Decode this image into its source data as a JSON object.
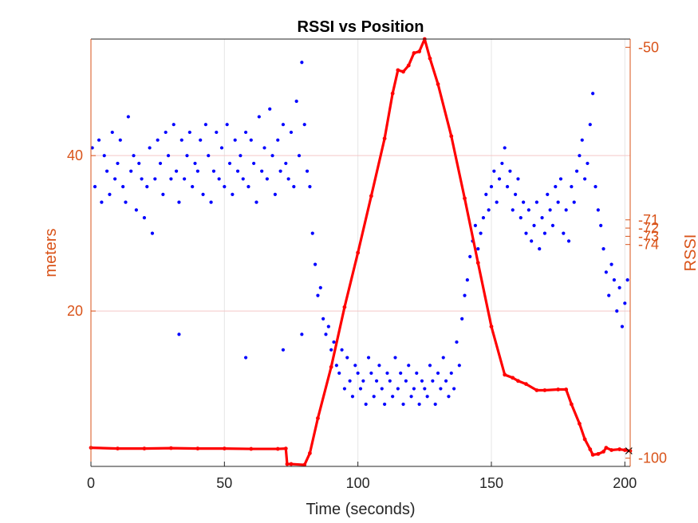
{
  "chart_data": {
    "type": "scatter",
    "title": "RSSI vs Position",
    "xlabel": "Time (seconds)",
    "ylabel_left": "meters",
    "ylabel_right": "RSSI",
    "xlim": [
      0,
      202
    ],
    "ylim_left": [
      0,
      55
    ],
    "ylim_right": [
      -101,
      -49
    ],
    "x_ticks": [
      "0",
      "50",
      "100",
      "150",
      "200"
    ],
    "y_ticks_left": [
      "20",
      "40"
    ],
    "y_ticks_right": [
      "-50",
      "-71",
      "-72",
      "-73",
      "-74",
      "-100"
    ],
    "grid": true,
    "colors": {
      "axis_left": "#D95319",
      "axis_right": "#D95319",
      "position": "#ff0000",
      "rssi": "#0000ff",
      "axes_box": "#262626",
      "grid": "#e6e6e6",
      "grid_pink": "#f4c7c7"
    },
    "series": [
      {
        "label": "position",
        "axis": "left",
        "style": "line",
        "x": [
          0,
          10,
          20,
          30,
          40,
          50,
          60,
          70,
          73,
          73.5,
          75,
          80,
          82,
          85,
          90,
          95,
          100,
          105,
          110,
          113,
          115,
          117,
          119,
          121,
          123,
          125,
          127,
          130,
          135,
          140,
          145,
          150,
          155,
          158,
          160,
          163,
          167,
          170,
          175,
          178,
          180,
          183,
          185,
          187,
          188,
          190,
          192,
          193,
          195,
          198,
          200,
          202
        ],
        "y": [
          2.4,
          2.3,
          2.3,
          2.35,
          2.3,
          2.3,
          2.25,
          2.25,
          2.3,
          0.3,
          0.3,
          0.2,
          1.7,
          6.2,
          12.8,
          20.5,
          27.5,
          34.8,
          42.2,
          48.0,
          51.0,
          50.8,
          51.6,
          53.2,
          53.4,
          55.0,
          52.5,
          49.2,
          42.5,
          34.5,
          26.2,
          18.0,
          11.8,
          11.4,
          11.0,
          10.6,
          9.8,
          9.8,
          9.9,
          9.9,
          8.0,
          5.5,
          3.5,
          2.2,
          1.5,
          1.6,
          1.9,
          2.4,
          2.1,
          2.2,
          2.1,
          2.0
        ]
      },
      {
        "label": "RSSI",
        "axis": "left",
        "style": "markers",
        "x": [
          0.5,
          1.5,
          3,
          4,
          5,
          6,
          7,
          8,
          9,
          10,
          11,
          12,
          13,
          14,
          15,
          16,
          17,
          18,
          19,
          20,
          21,
          22,
          23,
          24,
          25,
          26,
          27,
          28,
          29,
          30,
          31,
          32,
          33,
          34,
          35,
          36,
          37,
          38,
          39,
          40,
          41,
          42,
          43,
          44,
          45,
          46,
          47,
          48,
          49,
          50,
          51,
          52,
          53,
          54,
          55,
          56,
          57,
          58,
          59,
          60,
          61,
          62,
          63,
          64,
          65,
          66,
          67,
          68,
          69,
          70,
          71,
          72,
          73,
          74,
          75,
          76,
          77,
          78,
          79,
          80,
          81,
          82,
          83,
          84,
          85,
          86,
          87,
          88,
          89,
          90,
          91,
          92,
          93,
          94,
          95,
          96,
          97,
          98,
          99,
          100,
          101,
          102,
          103,
          104,
          105,
          106,
          107,
          108,
          109,
          110,
          111,
          112,
          113,
          114,
          115,
          116,
          117,
          118,
          119,
          120,
          121,
          122,
          123,
          124,
          125,
          126,
          127,
          128,
          129,
          130,
          131,
          132,
          133,
          134,
          135,
          136,
          137,
          138,
          139,
          140,
          141,
          142,
          143,
          144,
          145,
          146,
          147,
          148,
          149,
          150,
          151,
          152,
          153,
          154,
          155,
          156,
          157,
          158,
          159,
          160,
          161,
          162,
          163,
          164,
          165,
          166,
          167,
          168,
          169,
          170,
          171,
          172,
          173,
          174,
          175,
          176,
          177,
          178,
          179,
          180,
          181,
          182,
          183,
          184,
          185,
          186,
          187,
          188,
          189,
          190,
          191,
          192,
          193,
          194,
          195,
          196,
          197,
          198,
          199,
          200,
          201,
          33,
          58,
          72,
          79
        ],
        "y": [
          41,
          36,
          42,
          34,
          40,
          38,
          35,
          43,
          37,
          39,
          42,
          36,
          34,
          45,
          38,
          40,
          33,
          39,
          37,
          32,
          36,
          41,
          30,
          37,
          42,
          39,
          35,
          43,
          40,
          37,
          44,
          38,
          34,
          42,
          37,
          40,
          43,
          36,
          39,
          38,
          42,
          35,
          44,
          40,
          34,
          38,
          43,
          37,
          41,
          36,
          44,
          39,
          35,
          42,
          38,
          40,
          37,
          43,
          36,
          42,
          39,
          34,
          45,
          38,
          41,
          37,
          46,
          40,
          35,
          42,
          38,
          44,
          39,
          37,
          43,
          36,
          47,
          40,
          52,
          44,
          38,
          36,
          30,
          26,
          22,
          23,
          19,
          17,
          18,
          15,
          16,
          13,
          12,
          15,
          10,
          14,
          11,
          9,
          13,
          12,
          10,
          11,
          8,
          14,
          12,
          9,
          11,
          13,
          10,
          8,
          12,
          11,
          9,
          14,
          10,
          12,
          8,
          11,
          13,
          9,
          10,
          12,
          8,
          11,
          10,
          9,
          13,
          11,
          8,
          12,
          10,
          14,
          11,
          9,
          12,
          10,
          16,
          13,
          19,
          22,
          24,
          27,
          29,
          31,
          28,
          30,
          32,
          35,
          33,
          36,
          38,
          34,
          37,
          39,
          41,
          36,
          38,
          33,
          35,
          37,
          32,
          34,
          30,
          33,
          29,
          31,
          34,
          28,
          32,
          30,
          35,
          33,
          31,
          36,
          34,
          37,
          30,
          33,
          29,
          36,
          34,
          38,
          40,
          42,
          37,
          39,
          44,
          48,
          36,
          33,
          31,
          28,
          25,
          22,
          26,
          24,
          20,
          23,
          18,
          21,
          24,
          17,
          14,
          15,
          17
        ]
      }
    ],
    "annotations": [
      {
        "marker": "x",
        "x": 201.5,
        "y": 2.0
      }
    ]
  }
}
